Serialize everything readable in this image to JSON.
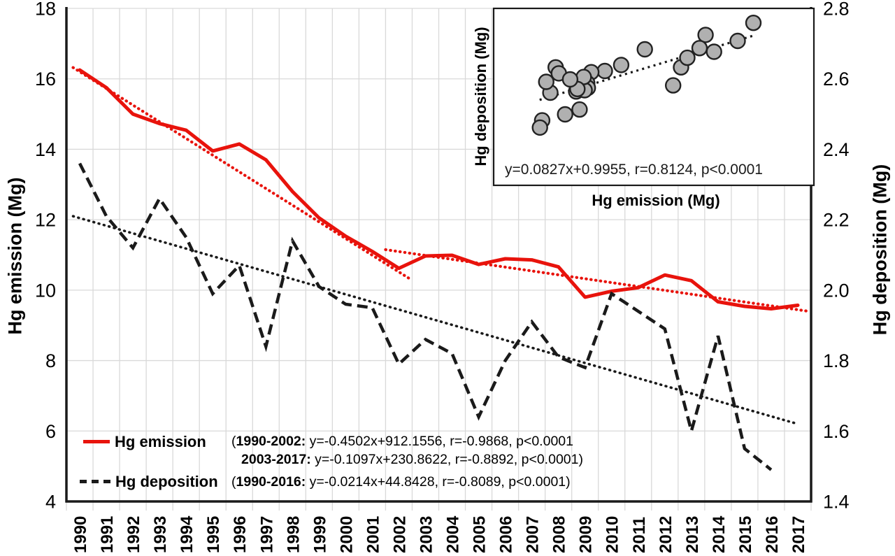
{
  "figure": {
    "background": "#ffffff",
    "grid_color": "#d9d9d9",
    "axis_color": "#1a1a1a",
    "emission_color": "#e8130c",
    "deposition_color": "#1a1a1a",
    "scatter_fill": "#b0b0b0",
    "scatter_stroke": "#222222"
  },
  "legend": {
    "emission": {
      "label": "Hg emission",
      "l1_open": "(",
      "l1_bold": "1990-2002:",
      "l1_rest": " y=-0.4502x+912.1556, r=-0.9868, p<0.0001",
      "l2_bold": "2003-2017:",
      "l2_rest": " y=-0.1097x+230.8622, r=-0.8892, p<0.0001)"
    },
    "deposition": {
      "label": "Hg deposition",
      "l_open": "(",
      "l_bold": "1990-2016:",
      "l_rest": " y=-0.0214x+44.8428, r=-0.8089, p<0.0001)"
    }
  },
  "chart_data": {
    "type": "line",
    "categories": [
      1990,
      1991,
      1992,
      1993,
      1994,
      1995,
      1996,
      1997,
      1998,
      1999,
      2000,
      2001,
      2002,
      2003,
      2004,
      2005,
      2006,
      2007,
      2008,
      2009,
      2010,
      2011,
      2012,
      2013,
      2014,
      2015,
      2016,
      2017
    ],
    "series": [
      {
        "name": "Hg emission",
        "axis": "left",
        "style": "solid",
        "values": [
          16.25,
          15.75,
          15.0,
          14.73,
          14.54,
          13.95,
          14.15,
          13.7,
          12.8,
          12.05,
          11.53,
          11.1,
          10.62,
          10.97,
          10.99,
          10.73,
          10.89,
          10.86,
          10.66,
          9.8,
          9.97,
          10.07,
          10.43,
          10.27,
          9.67,
          9.54,
          9.47,
          9.57
        ]
      },
      {
        "name": "Hg deposition",
        "axis": "right",
        "style": "dashed",
        "values": [
          2.36,
          2.21,
          2.12,
          2.26,
          2.15,
          1.99,
          2.07,
          1.84,
          2.14,
          2.01,
          1.96,
          1.95,
          1.79,
          1.86,
          1.82,
          1.64,
          1.8,
          1.91,
          1.81,
          1.78,
          1.99,
          1.94,
          1.89,
          1.6,
          1.87,
          1.55,
          1.49,
          null
        ]
      }
    ],
    "trendlines": [
      {
        "name": "emission-trend-1990-2002",
        "axis": "left",
        "style": "dotted-red",
        "x1": 1989.75,
        "v1": 16.32,
        "x2": 2002.5,
        "v2": 10.28
      },
      {
        "name": "emission-trend-2003-2017",
        "axis": "left",
        "style": "dotted-red",
        "x1": 2001.5,
        "v1": 11.15,
        "x2": 2017.4,
        "v2": 9.4
      },
      {
        "name": "deposition-trend-1990-2016",
        "axis": "right",
        "style": "dotted-black",
        "x1": 1989.75,
        "v1": 2.21,
        "x2": 2017.0,
        "v2": 1.62
      }
    ],
    "left_axis": {
      "label": "Hg emission (Mg)",
      "min": 4,
      "max": 18,
      "step": 2,
      "decimals": 0
    },
    "right_axis": {
      "label": "Hg deposition (Mg)",
      "min": 1.4,
      "max": 2.8,
      "step": 0.2,
      "decimals": 1
    },
    "grid": true,
    "inset": {
      "xlabel": "Hg emission (Mg)",
      "ylabel": "Hg deposition (Mg)",
      "equation": "y=0.0827x+0.9955, r=0.8124, p<0.0001",
      "x_range": [
        8.0,
        18.17
      ],
      "y_range": [
        1.01,
        2.48
      ],
      "trend": {
        "x1": 9.46,
        "y1": 1.72,
        "x2": 16.33,
        "y2": 2.26
      },
      "points_source": "pairs of (Hg emission, Hg deposition) for 1990-2016"
    }
  }
}
